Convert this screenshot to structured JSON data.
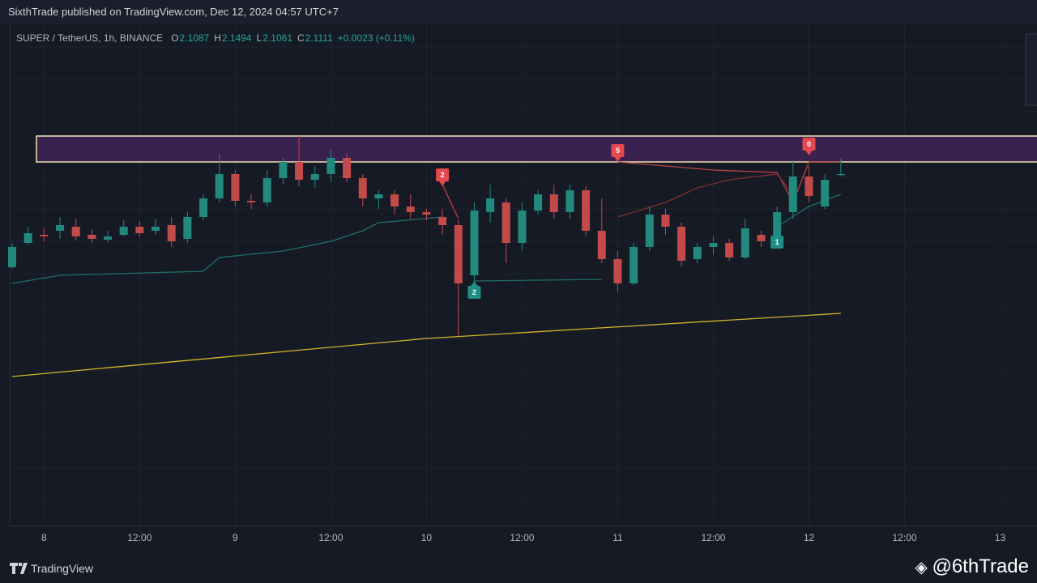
{
  "header": {
    "published": "SixthTrade published on TradingView.com, Dec 12, 2024 04:57 UTC+7",
    "symbol": "SUPER / TetherUS, 1h, BINANCE",
    "ohlc_letters": [
      "O",
      "H",
      "L",
      "C"
    ],
    "change": "+0.0023 (+0.11%)"
  },
  "footer": {
    "brand": "TradingView",
    "watermark": "@6thTrade"
  },
  "chart_data": {
    "type": "candlestick",
    "ylim": [
      1.241,
      2.481
    ],
    "up_color": "#22897f",
    "down_color": "#c24a4a",
    "x_labels": [
      "8",
      "12:00",
      "9",
      "12:00",
      "10",
      "12:00",
      "11",
      "12:00",
      "12",
      "12:00",
      "13"
    ],
    "candles": [
      [
        1.881,
        1.941,
        1.877,
        1.931
      ],
      [
        1.941,
        1.981,
        1.937,
        1.965
      ],
      [
        1.961,
        1.977,
        1.945,
        1.957
      ],
      [
        1.971,
        2.005,
        1.951,
        1.985
      ],
      [
        1.981,
        2.001,
        1.947,
        1.957
      ],
      [
        1.961,
        1.975,
        1.941,
        1.951
      ],
      [
        1.949,
        1.971,
        1.941,
        1.957
      ],
      [
        1.961,
        1.997,
        1.957,
        1.981
      ],
      [
        1.981,
        1.995,
        1.957,
        1.965
      ],
      [
        1.971,
        2.001,
        1.961,
        1.981
      ],
      [
        1.985,
        2.005,
        1.931,
        1.945
      ],
      [
        1.951,
        2.017,
        1.941,
        2.005
      ],
      [
        2.005,
        2.061,
        1.997,
        2.051
      ],
      [
        2.051,
        2.161,
        2.041,
        2.111
      ],
      [
        2.111,
        2.121,
        2.031,
        2.045
      ],
      [
        2.045,
        2.061,
        2.025,
        2.041
      ],
      [
        2.041,
        2.121,
        2.031,
        2.101
      ],
      [
        2.101,
        2.151,
        2.085,
        2.141
      ],
      [
        2.141,
        2.205,
        2.081,
        2.097
      ],
      [
        2.097,
        2.131,
        2.077,
        2.111
      ],
      [
        2.111,
        2.171,
        2.091,
        2.151
      ],
      [
        2.151,
        2.161,
        2.091,
        2.101
      ],
      [
        2.101,
        2.111,
        2.031,
        2.051
      ],
      [
        2.051,
        2.071,
        2.025,
        2.061
      ],
      [
        2.061,
        2.071,
        2.011,
        2.031
      ],
      [
        2.031,
        2.061,
        2.001,
        2.017
      ],
      [
        2.017,
        2.025,
        1.997,
        2.011
      ],
      [
        2.005,
        2.025,
        1.961,
        1.985
      ],
      [
        1.985,
        1.997,
        1.711,
        1.841
      ],
      [
        1.861,
        2.041,
        1.837,
        2.021
      ],
      [
        2.017,
        2.085,
        1.991,
        2.051
      ],
      [
        2.041,
        2.051,
        1.891,
        1.941
      ],
      [
        1.941,
        2.041,
        1.921,
        2.021
      ],
      [
        2.021,
        2.071,
        2.011,
        2.061
      ],
      [
        2.061,
        2.085,
        2.001,
        2.017
      ],
      [
        2.017,
        2.085,
        2.001,
        2.071
      ],
      [
        2.071,
        2.081,
        1.957,
        1.971
      ],
      [
        1.971,
        2.051,
        1.891,
        1.901
      ],
      [
        1.901,
        1.921,
        1.821,
        1.841
      ],
      [
        1.841,
        1.941,
        1.837,
        1.931
      ],
      [
        1.931,
        2.031,
        1.921,
        2.011
      ],
      [
        2.011,
        2.025,
        1.961,
        1.981
      ],
      [
        1.981,
        1.991,
        1.881,
        1.897
      ],
      [
        1.901,
        1.941,
        1.891,
        1.931
      ],
      [
        1.931,
        1.957,
        1.911,
        1.941
      ],
      [
        1.941,
        1.951,
        1.897,
        1.905
      ],
      [
        1.905,
        2.001,
        1.901,
        1.977
      ],
      [
        1.961,
        1.971,
        1.931,
        1.945
      ],
      [
        1.957,
        2.031,
        1.951,
        2.017
      ],
      [
        2.017,
        2.145,
        2.001,
        2.105
      ],
      [
        2.105,
        2.131,
        2.041,
        2.057
      ],
      [
        2.031,
        2.111,
        2.025,
        2.097
      ],
      [
        2.1087,
        2.1494,
        2.1061,
        2.1111
      ]
    ],
    "zone": {
      "values": [
        2.141,
        2.205
      ],
      "color": "#3a2250"
    },
    "lines": [
      {
        "x": [
          0,
          26,
          52
        ],
        "values": [
          1.611,
          1.705,
          1.767
        ],
        "color": "#d4b52a"
      },
      {
        "x": [
          0,
          3,
          12,
          13,
          17,
          20,
          22,
          23,
          27,
          28,
          29,
          37,
          38,
          48,
          50,
          52
        ],
        "values": [
          1.841,
          1.861,
          1.871,
          1.905,
          1.921,
          1.945,
          1.971,
          1.991,
          2.005,
          null,
          1.847,
          1.851,
          null,
          1.981,
          2.031,
          2.061
        ],
        "color": "#1f6f6a"
      },
      {
        "x": [
          27,
          28,
          29,
          38,
          44,
          48,
          49,
          50,
          52
        ],
        "values": [
          2.085,
          2.001,
          null,
          2.141,
          2.121,
          2.115,
          2.041,
          2.141,
          2.141
        ],
        "color": "#b84444"
      },
      {
        "x": [
          38,
          41,
          43,
          45,
          48,
          49
        ],
        "values": [
          2.005,
          2.041,
          2.077,
          2.097,
          2.111,
          2.061
        ],
        "color": "#7a3030"
      }
    ],
    "signals": [
      {
        "label": "2",
        "index": 27,
        "level": 2.081,
        "side": "sell"
      },
      {
        "label": "2",
        "index": 29,
        "level": 1.847,
        "side": "buy"
      },
      {
        "label": "5",
        "index": 38,
        "level": 2.141,
        "side": "sell"
      },
      {
        "label": "1",
        "index": 48,
        "level": 1.971,
        "side": "buy"
      },
      {
        "label": "0",
        "index": 50,
        "level": 2.157,
        "side": "sell"
      }
    ]
  }
}
